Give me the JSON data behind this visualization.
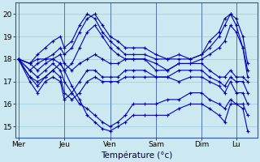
{
  "title": "Température (°c)",
  "background_color": "#cce8f0",
  "grid_color": "#99cce0",
  "line_color": "#0000bb",
  "ylim": [
    14.5,
    20.5
  ],
  "xlim": [
    -3,
    250
  ],
  "day_labels": [
    "Mer",
    "Jeu",
    "Ven",
    "Sam",
    "Dim",
    "Lu"
  ],
  "day_ticks_x": [
    0,
    48,
    96,
    144,
    192,
    228
  ],
  "yticks": [
    15,
    16,
    17,
    18,
    19,
    20
  ],
  "lines": [
    {
      "pts": [
        [
          0,
          18.0
        ],
        [
          12,
          17.8
        ],
        [
          20,
          17.5
        ],
        [
          28,
          17.8
        ],
        [
          36,
          18.0
        ],
        [
          44,
          17.8
        ],
        [
          48,
          17.5
        ],
        [
          56,
          16.8
        ],
        [
          64,
          16.2
        ],
        [
          72,
          15.5
        ],
        [
          80,
          15.2
        ],
        [
          88,
          14.9
        ],
        [
          96,
          14.8
        ],
        [
          104,
          15.0
        ],
        [
          112,
          15.2
        ],
        [
          120,
          15.5
        ],
        [
          132,
          15.5
        ],
        [
          144,
          15.5
        ],
        [
          156,
          15.5
        ],
        [
          168,
          15.8
        ],
        [
          180,
          16.0
        ],
        [
          192,
          16.0
        ],
        [
          200,
          15.8
        ],
        [
          210,
          15.5
        ],
        [
          216,
          15.2
        ],
        [
          222,
          16.0
        ],
        [
          228,
          16.0
        ],
        [
          235,
          15.8
        ],
        [
          240,
          14.8
        ]
      ]
    },
    {
      "pts": [
        [
          0,
          18.0
        ],
        [
          12,
          17.5
        ],
        [
          20,
          17.2
        ],
        [
          28,
          17.5
        ],
        [
          36,
          17.8
        ],
        [
          44,
          17.5
        ],
        [
          48,
          17.0
        ],
        [
          56,
          16.5
        ],
        [
          64,
          16.0
        ],
        [
          72,
          15.8
        ],
        [
          80,
          15.5
        ],
        [
          88,
          15.2
        ],
        [
          96,
          15.0
        ],
        [
          104,
          15.2
        ],
        [
          112,
          15.5
        ],
        [
          120,
          16.0
        ],
        [
          132,
          16.0
        ],
        [
          144,
          16.0
        ],
        [
          156,
          16.2
        ],
        [
          168,
          16.2
        ],
        [
          180,
          16.5
        ],
        [
          192,
          16.5
        ],
        [
          200,
          16.2
        ],
        [
          210,
          16.0
        ],
        [
          216,
          15.8
        ],
        [
          222,
          16.2
        ],
        [
          228,
          16.0
        ],
        [
          235,
          16.0
        ],
        [
          240,
          15.5
        ]
      ]
    },
    {
      "pts": [
        [
          0,
          18.0
        ],
        [
          12,
          17.2
        ],
        [
          20,
          16.8
        ],
        [
          28,
          17.2
        ],
        [
          36,
          17.5
        ],
        [
          44,
          17.2
        ],
        [
          48,
          16.5
        ],
        [
          56,
          16.2
        ],
        [
          64,
          16.5
        ],
        [
          72,
          17.0
        ],
        [
          80,
          17.2
        ],
        [
          88,
          17.0
        ],
        [
          96,
          17.0
        ],
        [
          104,
          17.0
        ],
        [
          112,
          17.2
        ],
        [
          120,
          17.2
        ],
        [
          132,
          17.2
        ],
        [
          144,
          17.2
        ],
        [
          156,
          17.2
        ],
        [
          168,
          17.0
        ],
        [
          180,
          17.2
        ],
        [
          192,
          17.2
        ],
        [
          200,
          17.0
        ],
        [
          210,
          16.8
        ],
        [
          216,
          16.5
        ],
        [
          222,
          17.0
        ],
        [
          228,
          16.5
        ],
        [
          235,
          16.5
        ],
        [
          240,
          16.0
        ]
      ]
    },
    {
      "pts": [
        [
          0,
          18.0
        ],
        [
          12,
          17.0
        ],
        [
          20,
          16.5
        ],
        [
          28,
          17.0
        ],
        [
          36,
          17.2
        ],
        [
          44,
          17.0
        ],
        [
          48,
          16.2
        ],
        [
          56,
          16.5
        ],
        [
          64,
          17.0
        ],
        [
          72,
          17.5
        ],
        [
          80,
          17.5
        ],
        [
          88,
          17.2
        ],
        [
          96,
          17.2
        ],
        [
          104,
          17.2
        ],
        [
          112,
          17.5
        ],
        [
          120,
          17.5
        ],
        [
          132,
          17.5
        ],
        [
          144,
          17.2
        ],
        [
          156,
          17.2
        ],
        [
          168,
          17.5
        ],
        [
          180,
          17.5
        ],
        [
          192,
          17.5
        ],
        [
          200,
          17.2
        ],
        [
          210,
          17.0
        ],
        [
          216,
          16.8
        ],
        [
          222,
          17.2
        ],
        [
          228,
          17.0
        ],
        [
          235,
          17.0
        ],
        [
          240,
          16.5
        ]
      ]
    },
    {
      "pts": [
        [
          0,
          18.0
        ],
        [
          12,
          17.8
        ],
        [
          20,
          18.0
        ],
        [
          28,
          18.0
        ],
        [
          36,
          18.0
        ],
        [
          44,
          18.2
        ],
        [
          48,
          17.8
        ],
        [
          56,
          17.5
        ],
        [
          64,
          17.8
        ],
        [
          72,
          18.0
        ],
        [
          80,
          18.2
        ],
        [
          88,
          18.0
        ],
        [
          96,
          17.8
        ],
        [
          104,
          17.8
        ],
        [
          112,
          18.0
        ],
        [
          120,
          18.0
        ],
        [
          132,
          18.0
        ],
        [
          144,
          17.5
        ],
        [
          156,
          17.5
        ],
        [
          168,
          17.8
        ],
        [
          180,
          17.8
        ],
        [
          192,
          17.8
        ],
        [
          200,
          17.5
        ],
        [
          210,
          17.2
        ],
        [
          216,
          17.2
        ],
        [
          222,
          17.5
        ],
        [
          228,
          17.2
        ],
        [
          235,
          17.2
        ],
        [
          240,
          17.0
        ]
      ]
    },
    {
      "pts": [
        [
          0,
          18.0
        ],
        [
          12,
          17.5
        ],
        [
          20,
          17.8
        ],
        [
          28,
          18.0
        ],
        [
          36,
          18.2
        ],
        [
          44,
          18.5
        ],
        [
          48,
          18.2
        ],
        [
          56,
          18.5
        ],
        [
          64,
          19.2
        ],
        [
          72,
          19.8
        ],
        [
          80,
          20.0
        ],
        [
          88,
          19.5
        ],
        [
          96,
          19.0
        ],
        [
          104,
          18.8
        ],
        [
          112,
          18.5
        ],
        [
          120,
          18.5
        ],
        [
          132,
          18.5
        ],
        [
          144,
          18.2
        ],
        [
          156,
          18.0
        ],
        [
          168,
          18.2
        ],
        [
          180,
          18.0
        ],
        [
          192,
          18.2
        ],
        [
          200,
          18.5
        ],
        [
          210,
          19.0
        ],
        [
          216,
          19.5
        ],
        [
          222,
          20.0
        ],
        [
          228,
          19.5
        ],
        [
          235,
          18.5
        ],
        [
          240,
          17.5
        ]
      ]
    },
    {
      "pts": [
        [
          0,
          18.0
        ],
        [
          12,
          17.8
        ],
        [
          20,
          18.2
        ],
        [
          28,
          18.5
        ],
        [
          36,
          18.8
        ],
        [
          44,
          19.0
        ],
        [
          48,
          18.5
        ],
        [
          56,
          18.8
        ],
        [
          64,
          19.5
        ],
        [
          72,
          20.0
        ],
        [
          80,
          19.8
        ],
        [
          88,
          19.2
        ],
        [
          96,
          18.8
        ],
        [
          104,
          18.5
        ],
        [
          112,
          18.2
        ],
        [
          120,
          18.2
        ],
        [
          132,
          18.2
        ],
        [
          144,
          18.0
        ],
        [
          156,
          18.0
        ],
        [
          168,
          18.0
        ],
        [
          180,
          18.0
        ],
        [
          192,
          18.2
        ],
        [
          200,
          18.8
        ],
        [
          210,
          19.2
        ],
        [
          216,
          19.8
        ],
        [
          222,
          20.0
        ],
        [
          228,
          19.8
        ],
        [
          235,
          19.0
        ],
        [
          240,
          17.8
        ]
      ]
    },
    {
      "pts": [
        [
          0,
          18.0
        ],
        [
          12,
          17.2
        ],
        [
          20,
          17.0
        ],
        [
          28,
          17.2
        ],
        [
          36,
          17.5
        ],
        [
          44,
          17.8
        ],
        [
          48,
          17.5
        ],
        [
          56,
          17.8
        ],
        [
          64,
          18.5
        ],
        [
          72,
          19.2
        ],
        [
          80,
          19.5
        ],
        [
          88,
          19.0
        ],
        [
          96,
          18.5
        ],
        [
          104,
          18.2
        ],
        [
          112,
          18.0
        ],
        [
          120,
          18.0
        ],
        [
          132,
          18.0
        ],
        [
          144,
          17.8
        ],
        [
          156,
          17.5
        ],
        [
          168,
          17.8
        ],
        [
          180,
          17.8
        ],
        [
          192,
          18.0
        ],
        [
          200,
          18.2
        ],
        [
          210,
          18.5
        ],
        [
          216,
          18.8
        ],
        [
          222,
          19.5
        ],
        [
          228,
          19.2
        ],
        [
          235,
          18.5
        ],
        [
          240,
          17.2
        ]
      ]
    }
  ]
}
